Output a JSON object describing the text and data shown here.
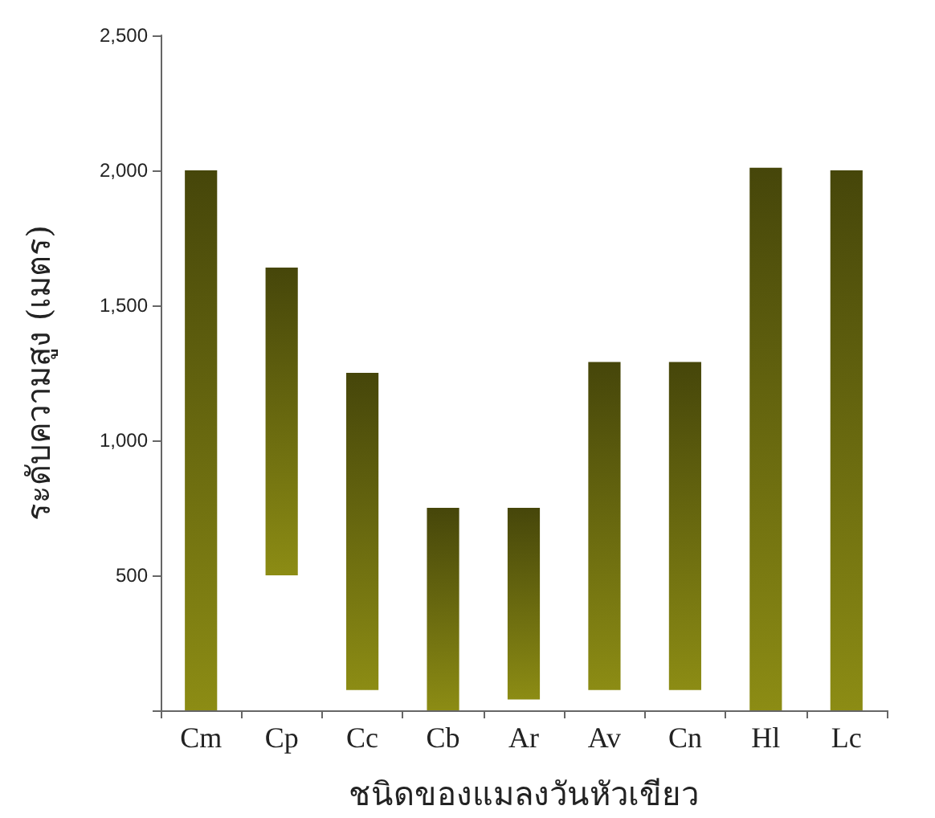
{
  "chart_data": {
    "type": "bar",
    "xlabel": "ชนิดของแมลงวันหัวเขียว",
    "ylabel": "ระดับความสูง (เมตร)",
    "categories": [
      "Cm",
      "Cp",
      "Cc",
      "Cb",
      "Ar",
      "Av",
      "Cn",
      "Hl",
      "Lc"
    ],
    "base": [
      0,
      500,
      75,
      0,
      40,
      75,
      75,
      0,
      0
    ],
    "values": [
      2000,
      1140,
      1175,
      750,
      710,
      1215,
      1215,
      2010,
      2000
    ],
    "color": "#8c8c14",
    "ylim": [
      0,
      2500
    ],
    "yticks": [
      {
        "value": 0,
        "label": null
      },
      {
        "value": 500,
        "label": "500"
      },
      {
        "value": 1000,
        "label": "1,000"
      },
      {
        "value": 1500,
        "label": "1,500"
      },
      {
        "value": 2000,
        "label": "2,000"
      },
      {
        "value": 2500,
        "label": "2,500"
      }
    ],
    "grid": false
  }
}
